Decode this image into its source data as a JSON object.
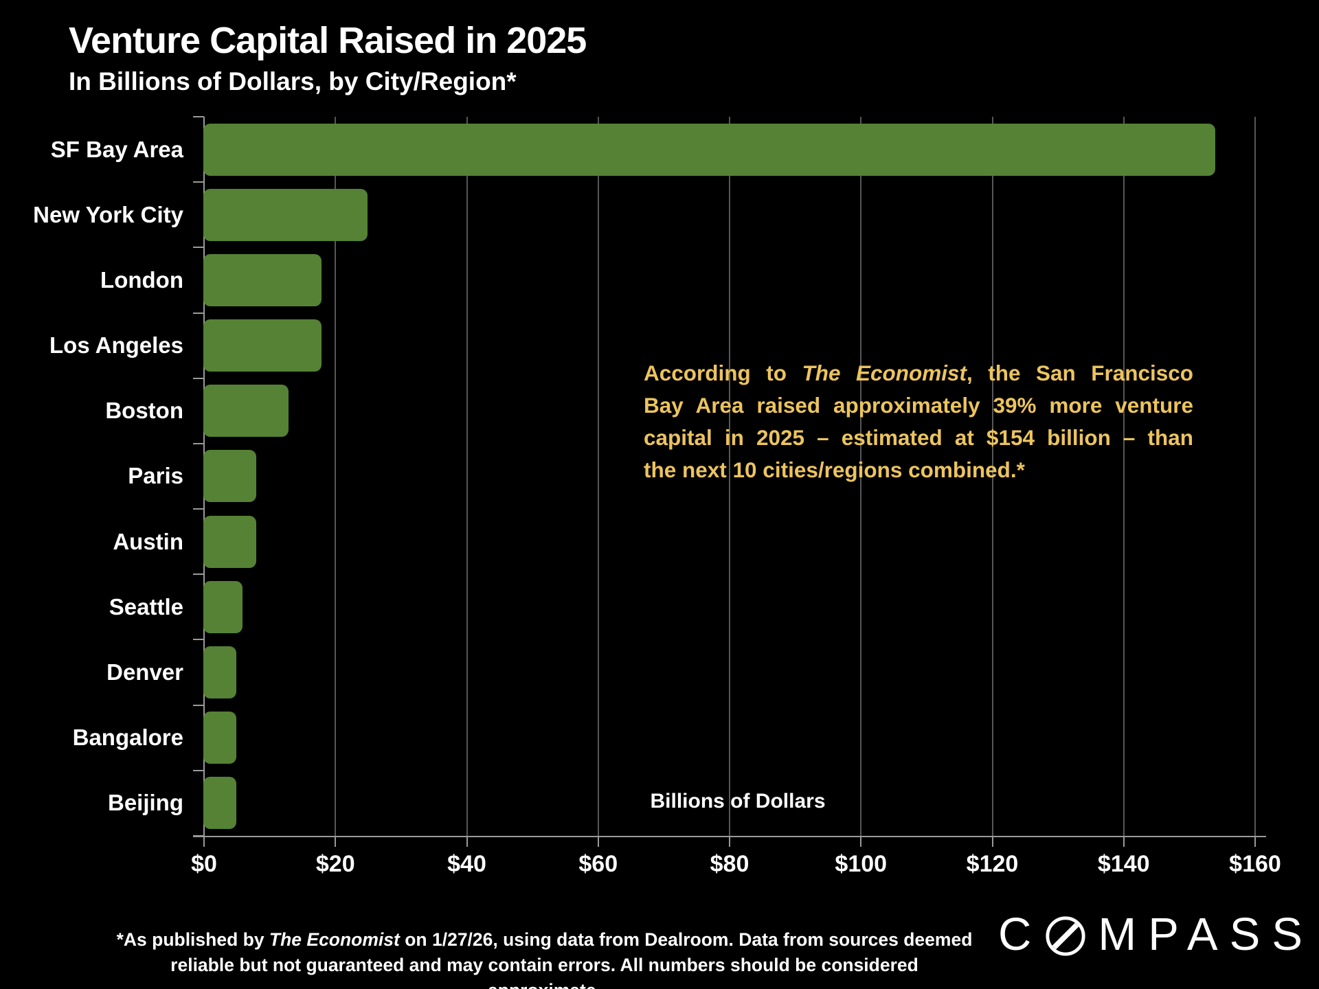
{
  "header": {
    "title": "Venture Capital Raised in 2025",
    "subtitle": "In Billions of Dollars, by City/Region*"
  },
  "chart_data": {
    "type": "bar",
    "orientation": "horizontal",
    "title": "Venture Capital Raised in 2025",
    "subtitle": "In Billions of Dollars, by City/Region*",
    "categories": [
      "SF Bay Area",
      "New York City",
      "London",
      "Los Angeles",
      "Boston",
      "Paris",
      "Austin",
      "Seattle",
      "Denver",
      "Bangalore",
      "Beijing"
    ],
    "values": [
      154,
      25,
      18,
      18,
      13,
      8,
      8,
      6,
      5,
      5,
      5
    ],
    "xlabel": "Billions of Dollars",
    "ylabel": "",
    "xlim": [
      0,
      160
    ],
    "xtick_values": [
      0,
      20,
      40,
      60,
      80,
      100,
      120,
      140,
      160
    ],
    "xtick_labels": [
      "$0",
      "$20",
      "$40",
      "$60",
      "$80",
      "$100",
      "$120",
      "$140",
      "$160"
    ],
    "grid": "vertical",
    "legend": "none",
    "bar_color": "#558234",
    "background_color": "#000000"
  },
  "annotation": {
    "color": "#ECC45F",
    "lines": [
      {
        "pre": "According to ",
        "italic": "The Economist",
        "post": ", the San Francisco"
      },
      {
        "text": "Bay Area raised approximately 39% more venture"
      },
      {
        "text": "capital in 2025 – estimated at $154 billion – than"
      },
      {
        "text": "the next 10 cities/regions combined.*"
      }
    ]
  },
  "footnote": {
    "line1_pre": "*As published by ",
    "line1_italic": "The Economist",
    "line1_post": " on 1/27/26, using data from Dealroom. Data from sources deemed",
    "line2": "reliable but not guaranteed and may contain errors. All numbers should be considered approximate."
  },
  "logo": {
    "letter_c": "C",
    "letters_rest": "MPASS",
    "name": "COMPASS"
  }
}
